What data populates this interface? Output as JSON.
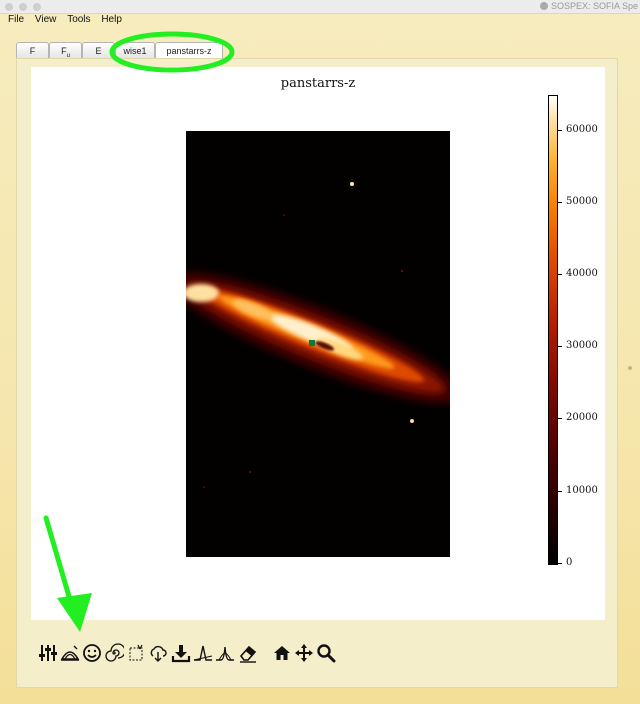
{
  "window": {
    "title": "SOSPEX: SOFIA Spe"
  },
  "menu": [
    "File",
    "View",
    "Tools",
    "Help"
  ],
  "tabs": [
    {
      "label": "F",
      "sub": "",
      "active": false
    },
    {
      "label": "F",
      "sub": "u",
      "active": false
    },
    {
      "label": "E",
      "sub": "",
      "active": false
    },
    {
      "label": "wise1",
      "sub": "",
      "active": false
    },
    {
      "label": "panstarrs-z",
      "sub": "",
      "active": true
    }
  ],
  "plot": {
    "title": "panstarrs-z",
    "colormap": "hot",
    "colorbar": {
      "min": 0,
      "max": 65000,
      "ticks": [
        "0",
        "10000",
        "20000",
        "30000",
        "40000",
        "50000",
        "60000"
      ]
    }
  },
  "toolbar": {
    "tools": [
      "sliders-icon",
      "sunrise-contour-icon",
      "smiley-icon",
      "spiral-icon",
      "cut-icon",
      "cloud-download-icon",
      "save-icon",
      "fit-peak-icon",
      "fit-gauss-icon",
      "eraser-icon",
      "home-icon",
      "pan-icon",
      "zoom-icon"
    ]
  },
  "annotations": {
    "circle_color": "#22ee22",
    "arrow_color": "#22ee22"
  },
  "colors": {
    "background": "#f5e6ac",
    "panel": "#f4eecb"
  }
}
